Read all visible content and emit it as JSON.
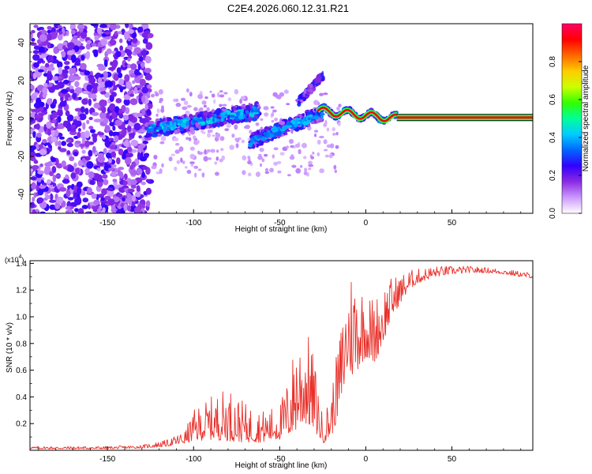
{
  "figure_title": "C2E4.2026.060.12.31.R21",
  "chart_data": [
    {
      "type": "heatmap",
      "title": "C2E4.2026.060.12.31.R21",
      "xlabel": "Height of straight line (km)",
      "ylabel": "Frequency (Hz)",
      "xlim": [
        -195,
        97
      ],
      "ylim": [
        -50,
        50
      ],
      "xticks": [
        -150,
        -100,
        -50,
        0,
        50
      ],
      "yticks": [
        -40,
        -20,
        0,
        20,
        40
      ],
      "colorbar": {
        "label": "Normalized spectral amplitude",
        "range": [
          0.0,
          1.0
        ],
        "ticks": [
          0.0,
          0.2,
          0.4,
          0.6,
          0.8
        ],
        "colors": [
          "#ffffff",
          "#cc99ff",
          "#8a2be2",
          "#3300ff",
          "#0066ff",
          "#00ccff",
          "#00ff99",
          "#33ff00",
          "#ccff00",
          "#ffcc00",
          "#ff6600",
          "#ff0000",
          "#ff0066"
        ]
      },
      "regions": [
        {
          "name": "diffuse noise",
          "x_range": [
            -195,
            -125
          ],
          "freq_range": [
            -50,
            50
          ]
        },
        {
          "name": "noisy carrier",
          "x_range": [
            -127,
            -62
          ],
          "freq_start": -6,
          "freq_end": 4
        },
        {
          "name": "second branch",
          "x_range": [
            -67,
            -25
          ],
          "freq_start": -12,
          "freq_end": 3
        },
        {
          "name": "upper spur",
          "x_range": [
            -40,
            -25
          ],
          "freq_start": 8,
          "freq_end": 22
        },
        {
          "name": "wavy carrier",
          "x_range": [
            -28,
            18
          ],
          "freq_start": 4,
          "freq_end": 0
        },
        {
          "name": "clean carrier",
          "x_range": [
            18,
            97
          ],
          "freq": 0.5
        }
      ]
    },
    {
      "type": "line",
      "xlabel": "Height of straight line (km)",
      "ylabel": "SNR (10 * v/v)",
      "scale_label": "(x10",
      "scale_exponent": "4",
      "scale_suffix": ")",
      "xlim": [
        -195,
        97
      ],
      "ylim": [
        0,
        1.42
      ],
      "xticks": [
        -150,
        -100,
        -50,
        0,
        50
      ],
      "yticks": [
        0.2,
        0.4,
        0.6,
        0.8,
        1.0,
        1.2,
        1.4
      ],
      "series": [
        {
          "name": "SNR",
          "color": "#e8302a",
          "envelope": {
            "x": [
              -195,
              -150,
              -130,
              -115,
              -105,
              -100,
              -90,
              -80,
              -70,
              -60,
              -50,
              -45,
              -40,
              -35,
              -30,
              -25,
              -20,
              -15,
              -12,
              -10,
              -8,
              -5,
              0,
              5,
              10,
              15,
              20,
              25,
              30,
              40,
              50,
              60,
              70,
              80,
              90,
              97
            ],
            "baseline": [
              0.01,
              0.01,
              0.015,
              0.03,
              0.05,
              0.07,
              0.08,
              0.07,
              0.06,
              0.06,
              0.08,
              0.1,
              0.15,
              0.2,
              0.15,
              0.05,
              0.1,
              0.3,
              0.5,
              0.6,
              0.55,
              0.6,
              0.7,
              0.65,
              0.8,
              1.0,
              1.1,
              1.2,
              1.25,
              1.3,
              1.32,
              1.33,
              1.33,
              1.32,
              1.3,
              1.29
            ],
            "peak": [
              0.03,
              0.03,
              0.04,
              0.08,
              0.15,
              0.3,
              0.4,
              0.48,
              0.35,
              0.3,
              0.35,
              0.55,
              0.9,
              0.95,
              0.7,
              0.25,
              0.45,
              0.9,
              1.15,
              1.3,
              1.42,
              1.35,
              1.2,
              1.15,
              1.25,
              1.3,
              1.32,
              1.35,
              1.36,
              1.38,
              1.38,
              1.38,
              1.37,
              1.36,
              1.34,
              1.33
            ]
          }
        }
      ]
    }
  ]
}
